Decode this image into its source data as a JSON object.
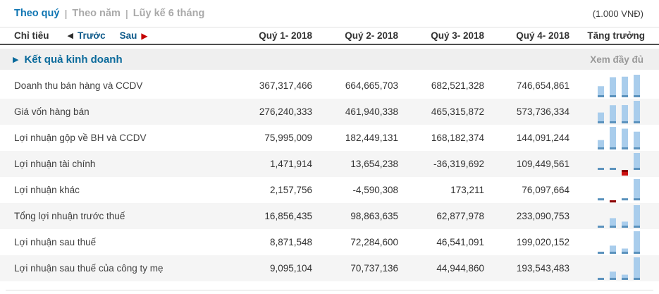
{
  "header": {
    "tabs": [
      {
        "label": "Theo quý",
        "active": true
      },
      {
        "label": "Theo năm",
        "active": false
      },
      {
        "label": "Lũy kế 6 tháng",
        "active": false
      }
    ],
    "separator": "|",
    "unit_note": "(1.000 VNĐ)"
  },
  "table": {
    "col_label": "Chỉ tiêu",
    "nav": {
      "prev_label": "Trước",
      "next_label": "Sau",
      "prev_icon": "◀",
      "next_icon": "▶"
    },
    "columns": [
      "Quý 1- 2018",
      "Quý 2- 2018",
      "Quý 3- 2018",
      "Quý 4- 2018"
    ],
    "growth_label": "Tăng trưởng"
  },
  "section": {
    "arrow_icon": "▶",
    "title": "Kết quả kinh doanh",
    "view_full_label": "Xem đầy đủ"
  },
  "rows": [
    {
      "label": "Doanh thu bán hàng và CCDV",
      "values": [
        367317466,
        664665703,
        682521328,
        746654861
      ]
    },
    {
      "label": "Giá vốn hàng bán",
      "values": [
        276240333,
        461940338,
        465315872,
        573736334
      ]
    },
    {
      "label": "Lợi nhuận gộp về BH và CCDV",
      "values": [
        75995009,
        182449131,
        168182374,
        144091244
      ]
    },
    {
      "label": "Lợi nhuận tài chính",
      "values": [
        1471914,
        13654238,
        -36319692,
        109449561
      ]
    },
    {
      "label": "Lợi nhuận khác",
      "values": [
        2157756,
        -4590308,
        173211,
        76097664
      ]
    },
    {
      "label": "Tổng lợi nhuận trước thuế",
      "values": [
        16856435,
        98863635,
        62877978,
        233090753
      ]
    },
    {
      "label": "Lợi nhuận sau thuế",
      "values": [
        8871548,
        72284600,
        46541091,
        199020152
      ]
    },
    {
      "label": "Lợi nhuận sau thuế của công ty mẹ",
      "values": [
        9095104,
        70737136,
        44944860,
        193543483
      ]
    }
  ],
  "colors": {
    "active_tab": "#0d74b2",
    "section_title": "#0a6a9b",
    "nav_link": "#0f5a8a",
    "next_arrow": "#c40000",
    "bar_positive": "#a9cdec",
    "bar_tick_positive": "#5b92bd",
    "bar_negative": "#cc1111",
    "bar_tick_negative": "#8b0000",
    "row_alt_bg": "#f5f5f5",
    "section_bg": "#efefef"
  }
}
